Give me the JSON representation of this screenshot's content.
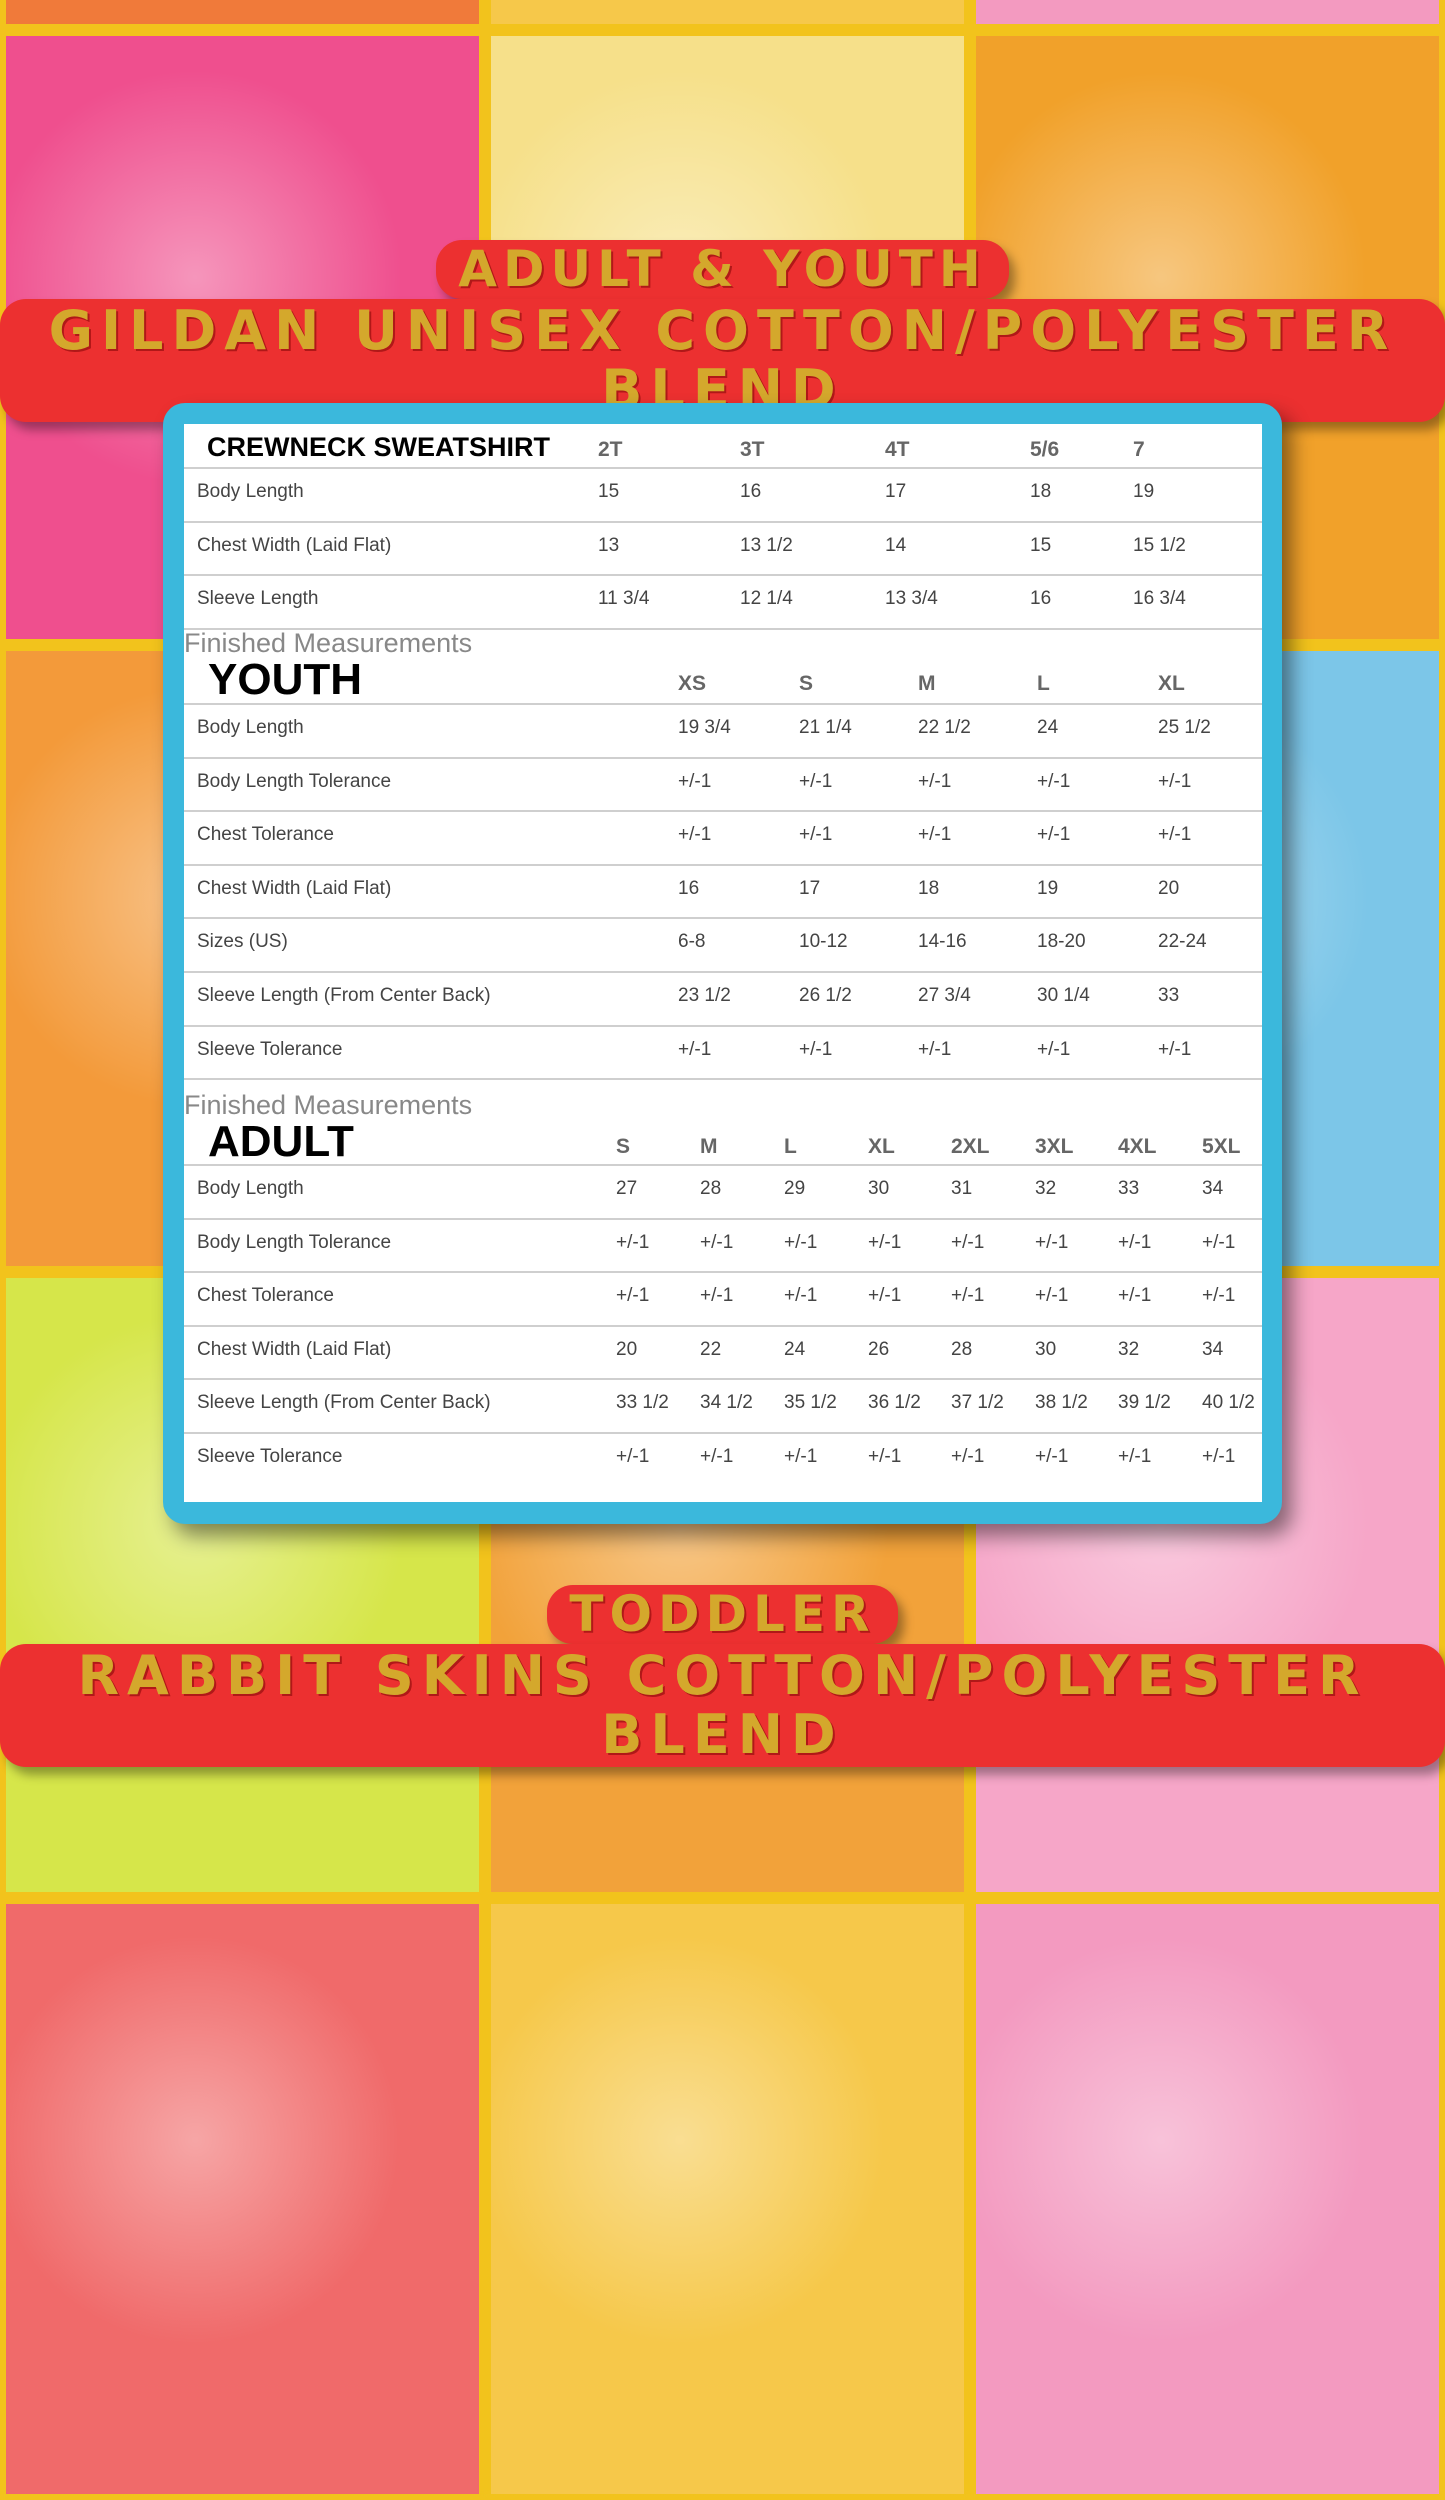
{
  "header": {
    "line1": "ADULT & YOUTH",
    "line2": "GILDAN UNISEX COTTON/POLYESTER BLEND"
  },
  "footer": {
    "line1": "TODDLER",
    "line2": "RABBIT SKINS COTTON/POLYESTER BLEND"
  },
  "colors": {
    "panel_border": "#3bb8dc",
    "banner_bg": "#ec3030",
    "banner_text": "#d4a82c"
  },
  "crewneck": {
    "title": "CREWNECK SWEATSHIRT",
    "sizes": [
      "2T",
      "3T",
      "4T",
      "5/6",
      "7"
    ],
    "rows": [
      {
        "label": "Body Length",
        "values": [
          "15",
          "16",
          "17",
          "18",
          "19"
        ]
      },
      {
        "label": "Chest Width (Laid Flat)",
        "values": [
          "13",
          "13 1/2",
          "14",
          "15",
          "15 1/2"
        ]
      },
      {
        "label": "Sleeve Length",
        "values": [
          "11 3/4",
          "12 1/4",
          "13 3/4",
          "16",
          "16 3/4"
        ]
      }
    ]
  },
  "youth": {
    "caption": "Finished Measurements",
    "title": "YOUTH",
    "sizes": [
      "XS",
      "S",
      "M",
      "L",
      "XL"
    ],
    "rows": [
      {
        "label": "Body Length",
        "values": [
          "19 3/4",
          "21 1/4",
          "22 1/2",
          "24",
          "25 1/2"
        ]
      },
      {
        "label": "Body Length Tolerance",
        "values": [
          "+/-1",
          "+/-1",
          "+/-1",
          "+/-1",
          "+/-1"
        ]
      },
      {
        "label": "Chest Tolerance",
        "values": [
          "+/-1",
          "+/-1",
          "+/-1",
          "+/-1",
          "+/-1"
        ]
      },
      {
        "label": "Chest Width (Laid Flat)",
        "values": [
          "16",
          "17",
          "18",
          "19",
          "20"
        ]
      },
      {
        "label": "Sizes (US)",
        "values": [
          "6-8",
          "10-12",
          "14-16",
          "18-20",
          "22-24"
        ]
      },
      {
        "label": "Sleeve Length (From Center Back)",
        "values": [
          "23 1/2",
          "26 1/2",
          "27 3/4",
          "30 1/4",
          "33"
        ]
      },
      {
        "label": "Sleeve Tolerance",
        "values": [
          "+/-1",
          "+/-1",
          "+/-1",
          "+/-1",
          "+/-1"
        ]
      }
    ]
  },
  "adult": {
    "caption": "Finished Measurements",
    "title": "ADULT",
    "sizes": [
      "S",
      "M",
      "L",
      "XL",
      "2XL",
      "3XL",
      "4XL",
      "5XL"
    ],
    "rows": [
      {
        "label": "Body Length",
        "values": [
          "27",
          "28",
          "29",
          "30",
          "31",
          "32",
          "33",
          "34"
        ]
      },
      {
        "label": "Body Length Tolerance",
        "values": [
          "+/-1",
          "+/-1",
          "+/-1",
          "+/-1",
          "+/-1",
          "+/-1",
          "+/-1",
          "+/-1"
        ]
      },
      {
        "label": "Chest Tolerance",
        "values": [
          "+/-1",
          "+/-1",
          "+/-1",
          "+/-1",
          "+/-1",
          "+/-1",
          "+/-1",
          "+/-1"
        ]
      },
      {
        "label": "Chest Width (Laid Flat)",
        "values": [
          "20",
          "22",
          "24",
          "26",
          "28",
          "30",
          "32",
          "34"
        ]
      },
      {
        "label": "Sleeve Length (From Center Back)",
        "values": [
          "33 1/2",
          "34 1/2",
          "35 1/2",
          "36 1/2",
          "37 1/2",
          "38 1/2",
          "39 1/2",
          "40 1/2"
        ]
      },
      {
        "label": "Sleeve Tolerance",
        "values": [
          "+/-1",
          "+/-1",
          "+/-1",
          "+/-1",
          "+/-1",
          "+/-1",
          "+/-1",
          "+/-1"
        ]
      }
    ]
  }
}
